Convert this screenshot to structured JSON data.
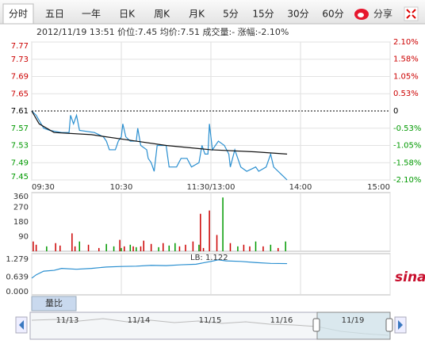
{
  "tabs": [
    "分时",
    "五日",
    "一年",
    "日K",
    "周K",
    "月K",
    "5分",
    "15分",
    "30分",
    "60分"
  ],
  "selected_tab": 0,
  "share": "分享",
  "info": "2012/11/19 13:51 价位:7.45 均价:7.51 成交量:- 涨幅:-2.10%",
  "brand": "sina",
  "indicator_tab": "量比",
  "navigator": {
    "labels": [
      "11/13",
      "11/14",
      "11/15",
      "11/16",
      "11/19"
    ]
  },
  "chart_data": [
    {
      "type": "line",
      "xlim": [
        0,
        240
      ],
      "xticks": [
        {
          "value": 0,
          "label": "09:30"
        },
        {
          "value": 60,
          "label": "10:30"
        },
        {
          "value": 120,
          "label": "11:30/13:00"
        },
        {
          "value": 180,
          "label": "14:00"
        },
        {
          "value": 240,
          "label": "15:00"
        }
      ],
      "ylim": [
        7.45,
        7.77
      ],
      "yticks": [
        7.45,
        7.49,
        7.53,
        7.57,
        7.61,
        7.65,
        7.69,
        7.73,
        7.77
      ],
      "y2lim": [
        -2.1,
        2.1
      ],
      "y2ticks": [
        {
          "value": -2.1,
          "label": "-2.10%"
        },
        {
          "value": -1.58,
          "label": "-1.58%"
        },
        {
          "value": -1.05,
          "label": "-1.05%"
        },
        {
          "value": -0.53,
          "label": "-0.53%"
        },
        0,
        {
          "value": 0.53,
          "label": "0.53%"
        },
        {
          "value": 1.05,
          "label": "1.05%"
        },
        {
          "value": 1.58,
          "label": "1.58%"
        },
        {
          "value": 2.1,
          "label": "2.10%"
        }
      ],
      "reference_line": 7.61,
      "grid": true,
      "up_color": "#cc0000",
      "down_color": "#009900",
      "series": [
        {
          "color": "#2a8fd0",
          "x": [
            0,
            3,
            8,
            12,
            20,
            25,
            26,
            28,
            30,
            32,
            42,
            48,
            50,
            52,
            56,
            58,
            60,
            61,
            63,
            66,
            70,
            71,
            73,
            77,
            78,
            80,
            82,
            84,
            90,
            92,
            97,
            100,
            104,
            107,
            112,
            114,
            116,
            118,
            119,
            121,
            125,
            129,
            132,
            133,
            136,
            138,
            140,
            144,
            150,
            152,
            157,
            160,
            162,
            165,
            168,
            171
          ],
          "values": [
            7.61,
            7.6,
            7.57,
            7.565,
            7.56,
            7.56,
            7.6,
            7.58,
            7.6,
            7.565,
            7.56,
            7.55,
            7.54,
            7.52,
            7.52,
            7.54,
            7.55,
            7.58,
            7.55,
            7.54,
            7.54,
            7.57,
            7.53,
            7.52,
            7.5,
            7.49,
            7.47,
            7.53,
            7.53,
            7.48,
            7.48,
            7.5,
            7.5,
            7.48,
            7.49,
            7.53,
            7.51,
            7.51,
            7.58,
            7.52,
            7.54,
            7.53,
            7.51,
            7.48,
            7.52,
            7.5,
            7.48,
            7.47,
            7.48,
            7.47,
            7.48,
            7.51,
            7.48,
            7.47,
            7.46,
            7.45
          ]
        },
        {
          "color": "#111111",
          "x": [
            0,
            5,
            15,
            40,
            70,
            90,
            120,
            150,
            171
          ],
          "values": [
            7.61,
            7.58,
            7.56,
            7.555,
            7.54,
            7.53,
            7.52,
            7.515,
            7.51
          ]
        }
      ]
    },
    {
      "type": "bar",
      "xlim": [
        0,
        240
      ],
      "ylim": [
        0,
        360
      ],
      "yticks": [
        90,
        180,
        270,
        360
      ],
      "x": [
        1,
        3,
        10,
        16,
        19,
        27,
        29,
        32,
        38,
        45,
        50,
        55,
        59,
        60,
        62,
        66,
        68,
        70,
        73,
        75,
        80,
        85,
        88,
        92,
        96,
        99,
        103,
        108,
        112,
        113,
        115,
        119,
        124,
        128,
        133,
        138,
        142,
        146,
        150,
        155,
        160,
        165,
        170
      ],
      "values": [
        60,
        40,
        30,
        50,
        35,
        110,
        30,
        60,
        40,
        20,
        45,
        30,
        70,
        20,
        30,
        40,
        30,
        25,
        30,
        65,
        45,
        25,
        50,
        35,
        50,
        30,
        40,
        60,
        40,
        230,
        20,
        250,
        100,
        330,
        50,
        30,
        40,
        30,
        60,
        30,
        40,
        20,
        60
      ],
      "colors": [
        "#cc0000",
        "#cc0000",
        "#009900",
        "#cc0000",
        "#cc0000",
        "#cc0000",
        "#cc0000",
        "#009900",
        "#cc0000",
        "#cc0000",
        "#009900",
        "#009900",
        "#cc0000",
        "#009900",
        "#cc0000",
        "#009900",
        "#cc0000",
        "#009900",
        "#cc0000",
        "#cc0000",
        "#cc0000",
        "#009900",
        "#cc0000",
        "#009900",
        "#009900",
        "#cc0000",
        "#cc0000",
        "#cc0000",
        "#009900",
        "#cc0000",
        "#cc0000",
        "#cc0000",
        "#cc0000",
        "#009900",
        "#cc0000",
        "#009900",
        "#cc0000",
        "#cc0000",
        "#009900",
        "#cc0000",
        "#009900",
        "#cc0000",
        "#009900"
      ]
    },
    {
      "type": "line",
      "xlim": [
        0,
        240
      ],
      "ylim": [
        0,
        1.48
      ],
      "yticks": [
        {
          "value": 0,
          "label": "0.000"
        },
        0.639,
        1.279
      ],
      "annotation": "LB: 1.122",
      "series": [
        {
          "color": "#2a8fd0",
          "x": [
            0,
            3,
            8,
            15,
            20,
            30,
            40,
            50,
            60,
            70,
            80,
            90,
            100,
            110,
            115,
            120,
            125,
            130,
            140,
            150,
            160,
            171
          ],
          "values": [
            0.6,
            0.72,
            0.85,
            0.88,
            0.95,
            0.92,
            0.95,
            1.0,
            1.02,
            1.03,
            1.06,
            1.05,
            1.08,
            1.1,
            1.15,
            1.2,
            1.26,
            1.22,
            1.2,
            1.16,
            1.13,
            1.122
          ]
        }
      ]
    }
  ]
}
